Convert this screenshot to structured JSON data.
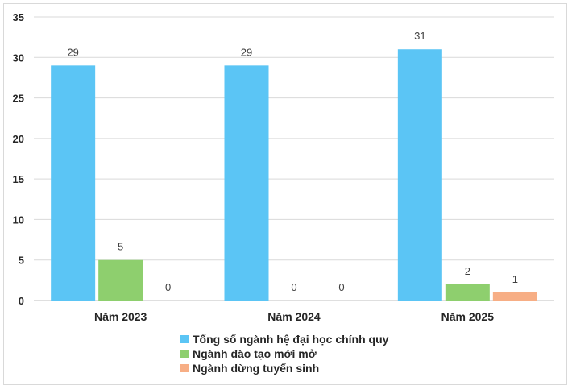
{
  "chart_data": {
    "type": "bar",
    "title": "",
    "xlabel": "",
    "ylabel": "",
    "ylim": [
      0,
      35
    ],
    "yticks": [
      0,
      5,
      10,
      15,
      20,
      25,
      30,
      35
    ],
    "grid": true,
    "legend_position": "bottom",
    "categories": [
      "Năm 2023",
      "Năm 2024",
      "Năm 2025"
    ],
    "series": [
      {
        "name": "Tổng số ngành hệ đại học chính quy",
        "color": "#5BC5F5",
        "values": [
          29,
          29,
          31
        ]
      },
      {
        "name": "Ngành đào tạo mới mở",
        "color": "#8ECF6E",
        "values": [
          5,
          0,
          2
        ]
      },
      {
        "name": "Ngành dừng tuyển sinh",
        "color": "#F7AE85",
        "values": [
          0,
          0,
          1
        ]
      }
    ]
  }
}
